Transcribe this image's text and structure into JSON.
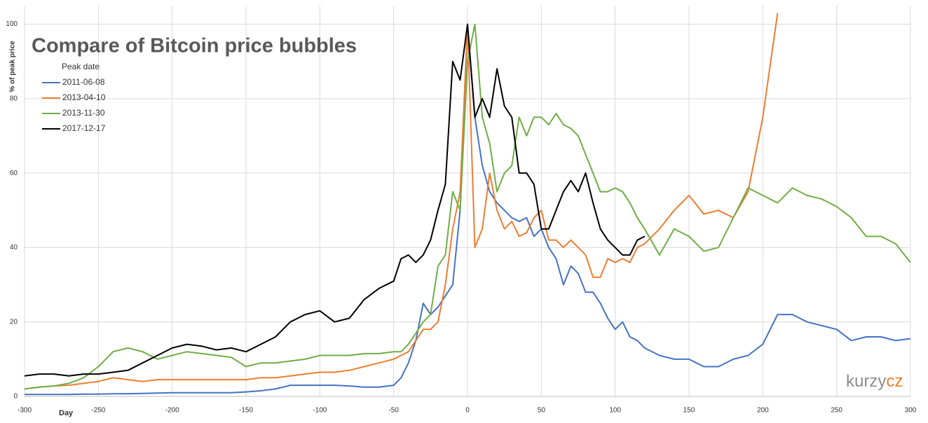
{
  "chart_data": {
    "type": "line",
    "title": "Compare of Bitcoin price bubbles",
    "x_label": "Day",
    "y_label": "% of peak price",
    "legend_title": "Peak date",
    "watermark": {
      "text": "kurzy",
      "accent": "cz"
    },
    "x": [
      -300,
      -290,
      -280,
      -270,
      -260,
      -250,
      -240,
      -230,
      -220,
      -210,
      -200,
      -190,
      -180,
      -170,
      -160,
      -150,
      -140,
      -130,
      -120,
      -110,
      -100,
      -90,
      -80,
      -70,
      -60,
      -50,
      -45,
      -40,
      -35,
      -30,
      -25,
      -20,
      -15,
      -10,
      -5,
      0,
      5,
      10,
      15,
      20,
      25,
      30,
      35,
      40,
      45,
      50,
      55,
      60,
      65,
      70,
      75,
      80,
      85,
      90,
      95,
      100,
      105,
      110,
      115,
      120,
      130,
      140,
      150,
      160,
      170,
      180,
      190,
      200,
      210,
      220,
      230,
      240,
      250,
      260,
      270,
      280,
      290,
      300
    ],
    "series": [
      {
        "name": "2011-06-08",
        "color": "#4472c4",
        "values": [
          0.5,
          0.5,
          0.5,
          0.5,
          0.6,
          0.6,
          0.7,
          0.7,
          0.8,
          0.9,
          1,
          1,
          1,
          1,
          1,
          1.2,
          1.5,
          2,
          3,
          3,
          3,
          3,
          2.8,
          2.5,
          2.5,
          3,
          5,
          9,
          15,
          25,
          22,
          24,
          27,
          30,
          50,
          100,
          75,
          62,
          55,
          52,
          50,
          48,
          47,
          48,
          43,
          45,
          40,
          37,
          30,
          35,
          33,
          28,
          28,
          25,
          21,
          18,
          20,
          16,
          15,
          13,
          11,
          10,
          10,
          8,
          8,
          10,
          11,
          14,
          22,
          22,
          20,
          19,
          18,
          15,
          16,
          16,
          15,
          15.5
        ]
      },
      {
        "name": "2013-04-10",
        "color": "#ed7d31",
        "values": [
          2,
          2.5,
          2.8,
          3,
          3.5,
          4,
          5,
          4.5,
          4,
          4.5,
          4.5,
          4.5,
          4.5,
          4.5,
          4.5,
          4.5,
          5,
          5,
          5.5,
          6,
          6.5,
          6.5,
          7,
          8,
          9,
          10,
          11,
          12,
          15,
          18,
          18,
          20,
          30,
          45,
          55,
          100,
          40,
          45,
          60,
          50,
          45,
          47,
          43,
          44,
          48,
          50,
          42,
          42,
          40,
          42,
          40,
          38,
          32,
          32,
          37,
          36,
          37,
          36,
          40,
          41,
          45,
          50,
          54,
          49,
          50,
          48,
          55,
          75,
          103,
          null,
          null,
          null,
          null,
          null,
          null,
          null,
          null,
          null
        ]
      },
      {
        "name": "2013-11-30",
        "color": "#70ad47",
        "values": [
          2,
          2.5,
          2.8,
          3.5,
          5,
          8,
          12,
          13,
          12,
          10,
          11,
          12,
          11.5,
          11,
          10.5,
          8,
          9,
          9,
          9.5,
          10,
          11,
          11,
          11,
          11.5,
          11.5,
          12,
          12,
          14,
          17,
          20,
          22,
          35,
          38,
          55,
          50,
          90,
          100,
          75,
          68,
          55,
          60,
          62,
          75,
          70,
          75,
          75,
          73,
          76,
          73,
          72,
          70,
          65,
          60,
          55,
          55,
          56,
          55,
          52,
          48,
          45,
          38,
          45,
          43,
          39,
          40,
          48,
          56,
          54,
          52,
          56,
          54,
          53,
          51,
          48,
          43,
          43,
          41,
          36
        ]
      },
      {
        "name": "2017-12-17",
        "color": "#000000",
        "values": [
          5.5,
          6,
          6,
          5.5,
          6,
          6,
          6.5,
          7,
          9,
          11,
          13,
          14,
          13.5,
          12.5,
          13,
          12,
          14,
          16,
          20,
          22,
          23,
          20,
          21,
          26,
          29,
          31,
          37,
          38,
          36,
          38,
          42,
          50,
          57,
          90,
          85,
          100,
          75,
          80,
          75,
          88,
          78,
          75,
          60,
          60,
          57,
          45,
          45,
          50,
          55,
          58,
          55,
          60,
          52,
          45,
          42,
          40,
          38,
          38,
          42,
          43,
          null,
          null,
          null,
          null,
          null,
          null,
          null,
          null,
          null,
          null,
          null,
          null,
          null,
          null,
          null,
          null,
          null,
          null
        ]
      }
    ],
    "xlim": [
      -300,
      300
    ],
    "ylim": [
      0,
      105
    ],
    "xticks": [
      -300,
      -250,
      -200,
      -150,
      -100,
      -50,
      0,
      50,
      100,
      150,
      200,
      250,
      300
    ],
    "yticks": [
      0,
      20,
      40,
      60,
      80,
      100
    ],
    "grid": true,
    "legend": "upper left"
  }
}
